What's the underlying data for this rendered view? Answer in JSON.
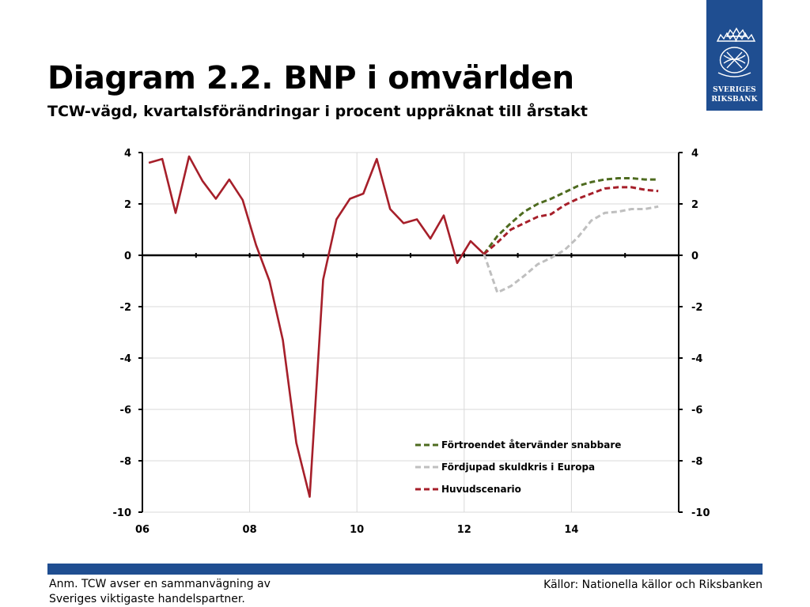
{
  "header": {
    "title": "Diagram 2.2. BNP i omvärlden",
    "subtitle": "TCW-vägd, kvartalsförändringar i procent uppräknat till årstakt"
  },
  "logo": {
    "line1": "SVERIGES",
    "line2": "RIKSBANK",
    "icon": "crown-emblem-icon"
  },
  "footer": {
    "note": "Anm. TCW avser en sammanvägning av Sveriges viktigaste handelspartner.",
    "source": "Källor: Nationella källor och Riksbanken"
  },
  "colors": {
    "brand": "#1f4e91",
    "historical": "#a61f2a",
    "confidence": "#4e6b1f",
    "debt": "#bfbfbf",
    "main": "#a61f2a"
  },
  "chart_data": {
    "type": "line",
    "title": "Diagram 2.2. BNP i omvärlden",
    "subtitle": "TCW-vägd, kvartalsförändringar i procent uppräknat till årstakt",
    "xlim": [
      2006.0,
      2016.0
    ],
    "ylim": [
      -10,
      4
    ],
    "x_ticks": [
      {
        "x": 2006,
        "label": "06"
      },
      {
        "x": 2008,
        "label": "08"
      },
      {
        "x": 2010,
        "label": "10"
      },
      {
        "x": 2012,
        "label": "12"
      },
      {
        "x": 2014,
        "label": "14"
      }
    ],
    "y_ticks": [
      4,
      2,
      0,
      -2,
      -4,
      -6,
      -8,
      -10
    ],
    "grid": "horizontal",
    "legend_position": "bottom-right",
    "series": [
      {
        "name": "",
        "style": "solid",
        "color": "#a61f2a",
        "x": [
          2006.12,
          2006.37,
          2006.62,
          2006.87,
          2007.12,
          2007.37,
          2007.62,
          2007.87,
          2008.12,
          2008.37,
          2008.62,
          2008.87,
          2009.12,
          2009.37,
          2009.62,
          2009.87,
          2010.12,
          2010.37,
          2010.62,
          2010.87,
          2011.12,
          2011.37,
          2011.62,
          2011.87,
          2012.12,
          2012.37
        ],
        "values": [
          3.6,
          3.75,
          1.65,
          3.85,
          2.9,
          2.2,
          2.95,
          2.15,
          0.4,
          -1.0,
          -3.3,
          -7.3,
          -9.4,
          -0.95,
          1.4,
          2.2,
          2.4,
          3.75,
          1.8,
          1.25,
          1.4,
          0.65,
          1.55,
          -0.3,
          0.55,
          0.05
        ]
      },
      {
        "name": "Förtroendet återvänder snabbare",
        "style": "dashed",
        "color": "#4e6b1f",
        "x": [
          2012.37,
          2012.62,
          2012.87,
          2013.12,
          2013.37,
          2013.62,
          2013.87,
          2014.12,
          2014.37,
          2014.62,
          2014.87,
          2015.12,
          2015.37,
          2015.62
        ],
        "values": [
          0.05,
          0.75,
          1.25,
          1.7,
          2.0,
          2.2,
          2.45,
          2.7,
          2.85,
          2.95,
          3.0,
          3.0,
          2.95,
          2.95
        ]
      },
      {
        "name": "Fördjupad skuldkris i Europa",
        "style": "dashed",
        "color": "#bfbfbf",
        "x": [
          2012.37,
          2012.62,
          2012.87,
          2013.12,
          2013.37,
          2013.62,
          2013.87,
          2014.12,
          2014.37,
          2014.62,
          2014.87,
          2015.12,
          2015.37,
          2015.62
        ],
        "values": [
          0.05,
          -1.45,
          -1.2,
          -0.8,
          -0.35,
          -0.1,
          0.2,
          0.7,
          1.35,
          1.65,
          1.7,
          1.8,
          1.8,
          1.9
        ]
      },
      {
        "name": "Huvudscenario",
        "style": "dashed",
        "color": "#a61f2a",
        "x": [
          2012.37,
          2012.62,
          2012.87,
          2013.12,
          2013.37,
          2013.62,
          2013.87,
          2014.12,
          2014.37,
          2014.62,
          2014.87,
          2015.12,
          2015.37,
          2015.62
        ],
        "values": [
          0.05,
          0.5,
          1.0,
          1.25,
          1.5,
          1.6,
          1.95,
          2.2,
          2.4,
          2.6,
          2.65,
          2.65,
          2.55,
          2.5
        ]
      }
    ],
    "legend": [
      "Förtroendet återvänder snabbare",
      "Fördjupad skuldkris i Europa",
      "Huvudscenario"
    ]
  }
}
